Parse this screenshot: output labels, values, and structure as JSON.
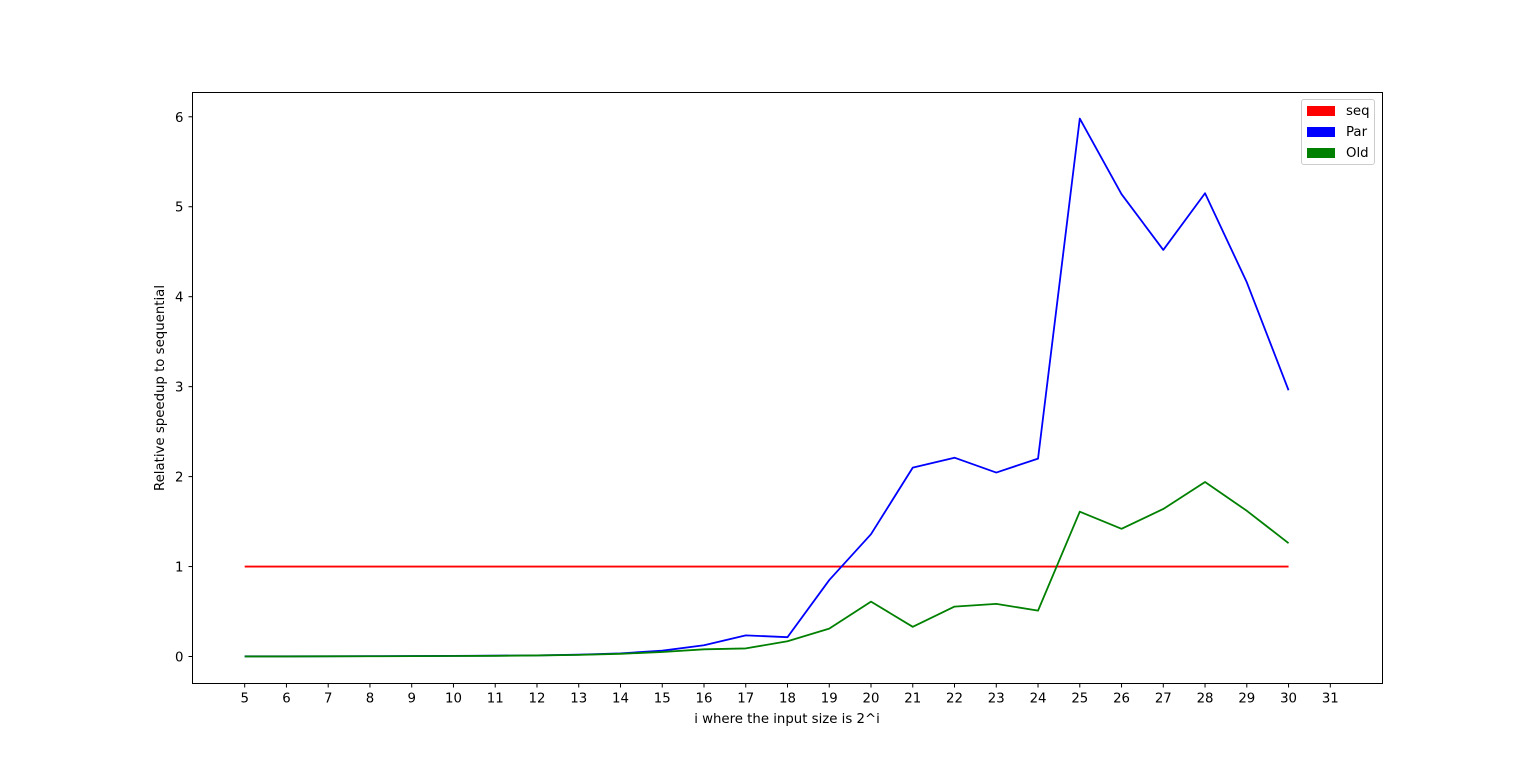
{
  "chart_data": {
    "type": "line",
    "title": "",
    "xlabel": "i where the input size is 2^i",
    "ylabel": "Relative speedup to sequential",
    "x": [
      5,
      6,
      7,
      8,
      9,
      10,
      11,
      12,
      13,
      14,
      15,
      16,
      17,
      18,
      19,
      20,
      21,
      22,
      23,
      24,
      25,
      26,
      27,
      28,
      29,
      30
    ],
    "xticks": [
      5,
      6,
      7,
      8,
      9,
      10,
      11,
      12,
      13,
      14,
      15,
      16,
      17,
      18,
      19,
      20,
      21,
      22,
      23,
      24,
      25,
      26,
      27,
      28,
      29,
      30,
      31
    ],
    "yticks": [
      0,
      1,
      2,
      3,
      4,
      5,
      6
    ],
    "xlim": [
      3.75,
      32.25
    ],
    "ylim": [
      -0.3,
      6.27
    ],
    "grid": false,
    "legend_position": "top-right",
    "series": [
      {
        "name": "seq",
        "color": "#ff0000",
        "values": [
          1,
          1,
          1,
          1,
          1,
          1,
          1,
          1,
          1,
          1,
          1,
          1,
          1,
          1,
          1,
          1,
          1,
          1,
          1,
          1,
          1,
          1,
          1,
          1,
          1,
          1
        ]
      },
      {
        "name": "Par",
        "color": "#0000ff",
        "values": [
          0.002,
          0.002,
          0.003,
          0.004,
          0.005,
          0.007,
          0.009,
          0.013,
          0.02,
          0.035,
          0.065,
          0.125,
          0.235,
          0.215,
          0.85,
          1.36,
          2.1,
          2.21,
          2.045,
          2.2,
          5.98,
          5.14,
          4.52,
          5.15,
          4.16,
          2.96
        ]
      },
      {
        "name": "Old",
        "color": "#008000",
        "values": [
          0.001,
          0.001,
          0.002,
          0.003,
          0.004,
          0.006,
          0.008,
          0.012,
          0.018,
          0.03,
          0.05,
          0.08,
          0.09,
          0.17,
          0.31,
          0.61,
          0.33,
          0.555,
          0.585,
          0.51,
          1.61,
          1.42,
          1.64,
          1.94,
          1.62,
          1.26
        ]
      }
    ]
  }
}
